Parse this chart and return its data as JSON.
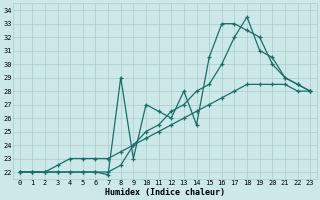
{
  "xlabel": "Humidex (Indice chaleur)",
  "bg_color": "#cce8e8",
  "grid_color": "#aacccc",
  "line_color": "#1a6e6a",
  "ylim": [
    21.5,
    34.5
  ],
  "xlim": [
    -0.5,
    23.5
  ],
  "yticks": [
    22,
    23,
    24,
    25,
    26,
    27,
    28,
    29,
    30,
    31,
    32,
    33,
    34
  ],
  "xticks": [
    0,
    1,
    2,
    3,
    4,
    5,
    6,
    7,
    8,
    9,
    10,
    11,
    12,
    13,
    14,
    15,
    16,
    17,
    18,
    19,
    20,
    21,
    22,
    23
  ],
  "line1_x": [
    0,
    1,
    2,
    3,
    4,
    5,
    6,
    7,
    8,
    9,
    10,
    11,
    12,
    13,
    14,
    15,
    16,
    17,
    18,
    19,
    20,
    21,
    22,
    23
  ],
  "line1_y": [
    22,
    22,
    22,
    22,
    22,
    22,
    22,
    21.8,
    29,
    23,
    27,
    26.5,
    26,
    28,
    25.5,
    30.5,
    33,
    33,
    32.5,
    32,
    30,
    29,
    28.5,
    28
  ],
  "line2_x": [
    0,
    1,
    2,
    3,
    4,
    5,
    6,
    7,
    8,
    9,
    10,
    11,
    12,
    13,
    14,
    15,
    16,
    17,
    18,
    19,
    20,
    21,
    22,
    23
  ],
  "line2_y": [
    22,
    22,
    22,
    22,
    22,
    22,
    22,
    22,
    22.5,
    24,
    25,
    25.5,
    26.5,
    27,
    28,
    28.5,
    30,
    32,
    33.5,
    31,
    30.5,
    29,
    28.5,
    28
  ],
  "line3_x": [
    0,
    1,
    2,
    3,
    4,
    5,
    6,
    7,
    8,
    9,
    10,
    11,
    12,
    13,
    14,
    15,
    16,
    17,
    18,
    19,
    20,
    21,
    22,
    23
  ],
  "line3_y": [
    22,
    22,
    22,
    22.5,
    23,
    23,
    23,
    23,
    23.5,
    24,
    24.5,
    25,
    25.5,
    26,
    26.5,
    27,
    27.5,
    28,
    28.5,
    28.5,
    28.5,
    28.5,
    28,
    28
  ]
}
